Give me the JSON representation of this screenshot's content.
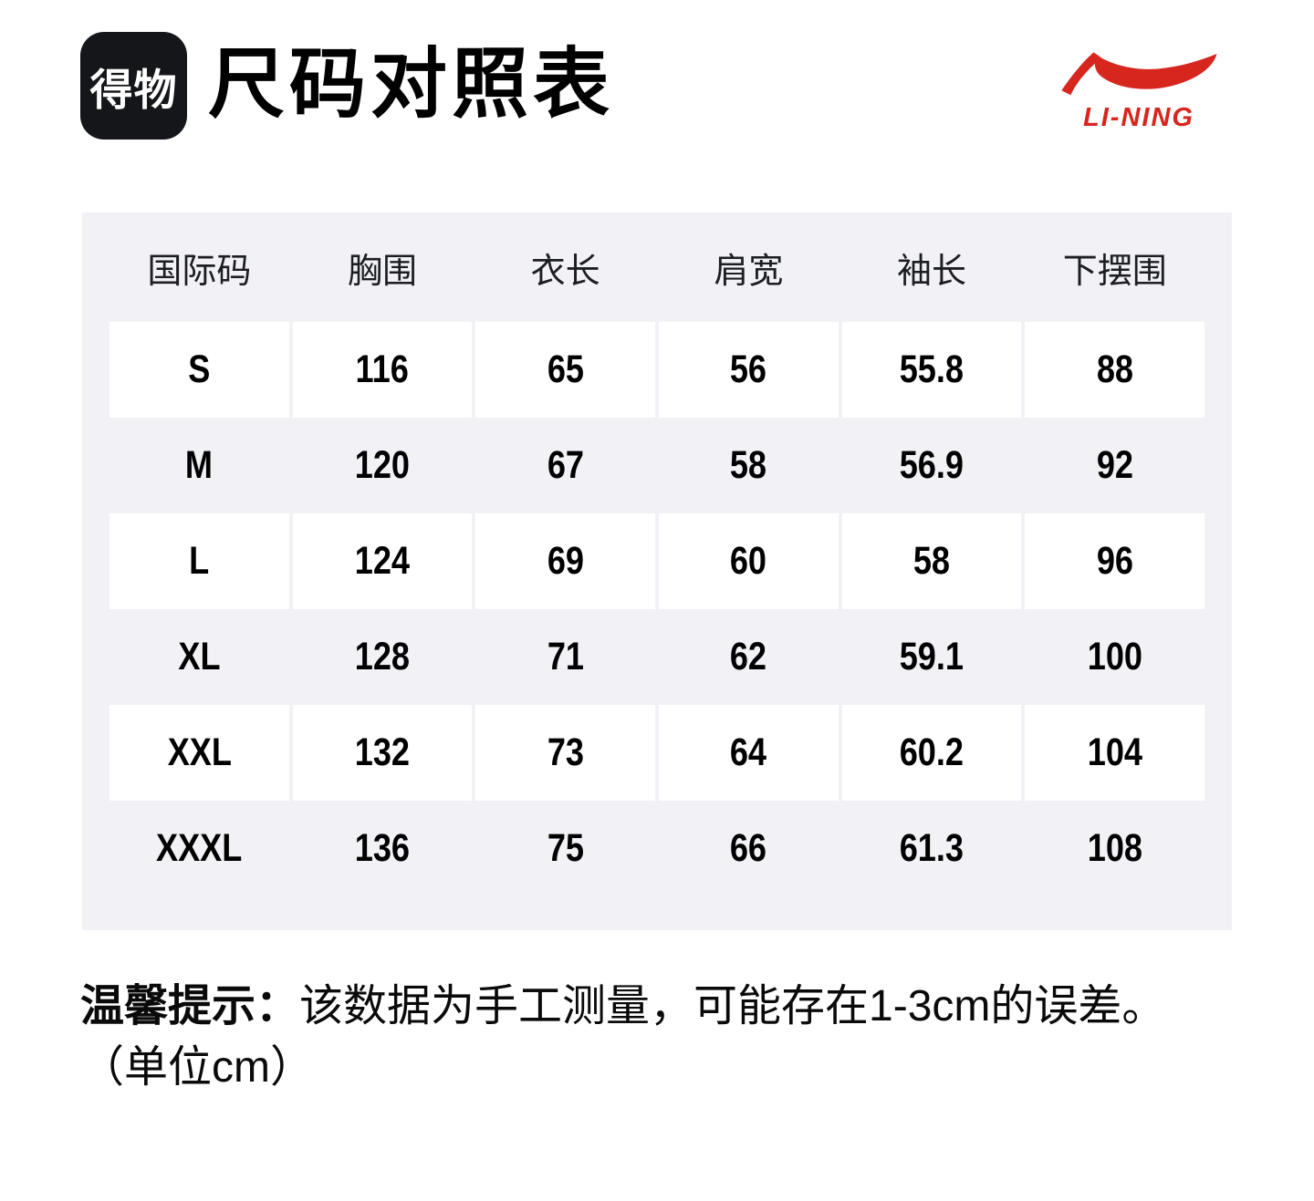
{
  "header": {
    "dewu_logo_text": "得物",
    "title": "尺码对照表",
    "lining_logo_text": "LI-NING"
  },
  "colors": {
    "brand_red": "#d7261e",
    "logo_black": "#14161a",
    "table_background": "#f2f2f6",
    "cell_white": "#ffffff",
    "text_black": "#000000"
  },
  "size_table": {
    "columns": [
      "国际码",
      "胸围",
      "衣长",
      "肩宽",
      "袖长",
      "下摆围"
    ],
    "rows": [
      {
        "size": "S",
        "values": [
          "116",
          "65",
          "56",
          "55.8",
          "88"
        ]
      },
      {
        "size": "M",
        "values": [
          "120",
          "67",
          "58",
          "56.9",
          "92"
        ]
      },
      {
        "size": "L",
        "values": [
          "124",
          "69",
          "60",
          "58",
          "96"
        ]
      },
      {
        "size": "XL",
        "values": [
          "128",
          "71",
          "62",
          "59.1",
          "100"
        ]
      },
      {
        "size": "XXL",
        "values": [
          "132",
          "73",
          "64",
          "60.2",
          "104"
        ]
      },
      {
        "size": "XXXL",
        "values": [
          "136",
          "75",
          "66",
          "61.3",
          "108"
        ]
      }
    ]
  },
  "note": {
    "label": "温馨提示：",
    "text": "该数据为手工测量，可能存在1-3cm的误差。",
    "unit": "（单位cm）"
  }
}
